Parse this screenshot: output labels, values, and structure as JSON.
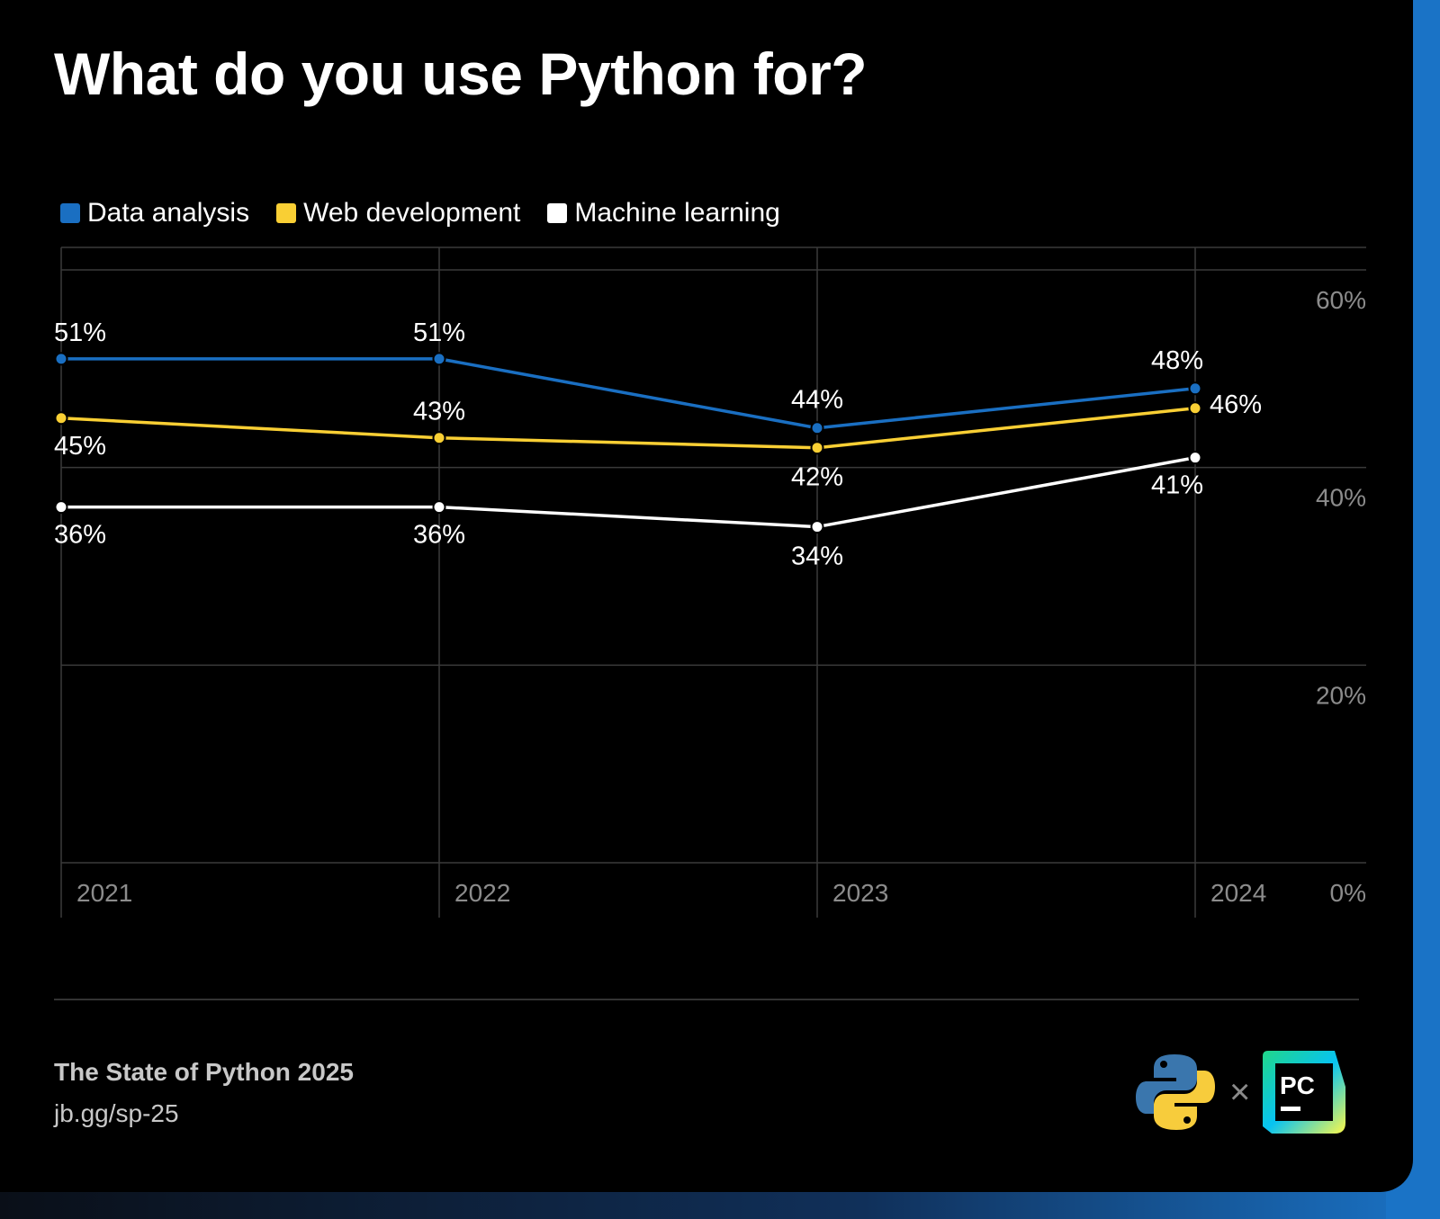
{
  "title": "What do you use Python for?",
  "legend": [
    {
      "label": "Data analysis",
      "color": "#1a6fc2"
    },
    {
      "label": "Web development",
      "color": "#f9cf34"
    },
    {
      "label": "Machine learning",
      "color": "#ffffff"
    }
  ],
  "chart_data": {
    "type": "line",
    "title": "What do you use Python for?",
    "categories": [
      "2021",
      "2022",
      "2023",
      "2024"
    ],
    "series": [
      {
        "name": "Data analysis",
        "color": "#1a6fc2",
        "values": [
          51,
          51,
          44,
          48
        ],
        "labels": [
          "51%",
          "51%",
          "44%",
          "48%"
        ]
      },
      {
        "name": "Web development",
        "color": "#f9cf34",
        "values": [
          45,
          43,
          42,
          46
        ],
        "labels": [
          "45%",
          "43%",
          "42%",
          "46%"
        ]
      },
      {
        "name": "Machine learning",
        "color": "#ffffff",
        "values": [
          36,
          36,
          34,
          41
        ],
        "labels": [
          "36%",
          "36%",
          "34%",
          "41%"
        ]
      }
    ],
    "ylim": [
      0,
      60
    ],
    "yticks": [
      "0%",
      "20%",
      "40%",
      "60%"
    ],
    "ytick_values": [
      0,
      20,
      40,
      60
    ],
    "y_axis_side": "right",
    "grid": true,
    "legend_position": "top-left"
  },
  "footer": {
    "survey_title": "The State of Python 2025",
    "url": "jb.gg/sp-25"
  },
  "logos": {
    "python": "python-logo-icon",
    "separator": "×",
    "pycharm": "PC"
  }
}
